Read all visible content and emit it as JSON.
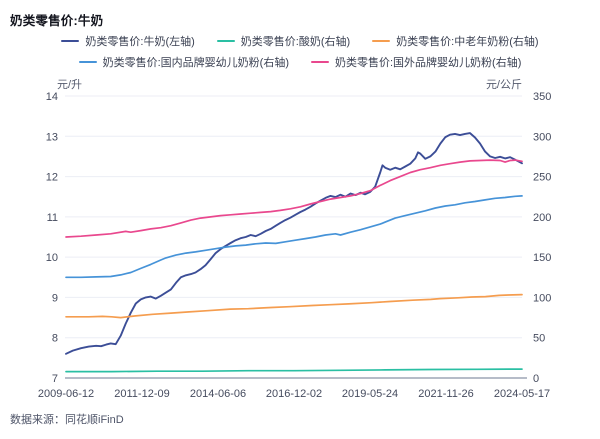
{
  "header": {
    "title": "奶类零售价:牛奶"
  },
  "footer": {
    "source_label": "数据来源：同花顺iFinD"
  },
  "chart_data": {
    "type": "line",
    "title": "奶类零售价:牛奶",
    "grid": true,
    "legend_position": "top-center",
    "left_axis": {
      "unit": "元/升",
      "min": 7,
      "max": 14,
      "ticks": [
        14,
        13,
        12,
        11,
        10,
        9,
        8,
        7
      ]
    },
    "right_axis": {
      "unit": "元/公斤",
      "min": 0,
      "max": 350,
      "ticks": [
        350,
        300,
        250,
        200,
        150,
        100,
        50,
        0
      ]
    },
    "x_tick_labels": [
      "2009-06-12",
      "2011-12-09",
      "2014-06-06",
      "2016-12-02",
      "2019-05-24",
      "2021-11-26",
      "2024-05-17"
    ],
    "legend_rows": [
      [
        0,
        1,
        2
      ],
      [
        3,
        4
      ]
    ],
    "colors": {
      "milk_navy": "#3c4e97",
      "yogurt_teal": "#2abfa3",
      "elder_powder_orange": "#f59d4f",
      "domestic_formula_blue": "#4693d8",
      "foreign_formula_pink": "#e9488e",
      "gridline": "#eceef5",
      "axis_line": "#b6bcc8",
      "tick_text": "#454b5e"
    },
    "series": [
      {
        "name": "奶类零售价:牛奶(左轴)",
        "axis": "left",
        "color": "#3c4e97",
        "width": 1.9,
        "points": [
          [
            0,
            7.6
          ],
          [
            0.015,
            7.68
          ],
          [
            0.033,
            7.74
          ],
          [
            0.05,
            7.78
          ],
          [
            0.066,
            7.8
          ],
          [
            0.077,
            7.79
          ],
          [
            0.088,
            7.83
          ],
          [
            0.098,
            7.86
          ],
          [
            0.109,
            7.84
          ],
          [
            0.12,
            8.05
          ],
          [
            0.131,
            8.35
          ],
          [
            0.142,
            8.62
          ],
          [
            0.153,
            8.85
          ],
          [
            0.164,
            8.95
          ],
          [
            0.175,
            9.0
          ],
          [
            0.186,
            9.02
          ],
          [
            0.197,
            8.97
          ],
          [
            0.208,
            9.04
          ],
          [
            0.219,
            9.12
          ],
          [
            0.23,
            9.2
          ],
          [
            0.241,
            9.36
          ],
          [
            0.252,
            9.5
          ],
          [
            0.263,
            9.55
          ],
          [
            0.274,
            9.58
          ],
          [
            0.284,
            9.62
          ],
          [
            0.295,
            9.7
          ],
          [
            0.306,
            9.8
          ],
          [
            0.317,
            9.95
          ],
          [
            0.328,
            10.1
          ],
          [
            0.339,
            10.2
          ],
          [
            0.35,
            10.28
          ],
          [
            0.361,
            10.35
          ],
          [
            0.372,
            10.42
          ],
          [
            0.383,
            10.47
          ],
          [
            0.394,
            10.5
          ],
          [
            0.405,
            10.55
          ],
          [
            0.416,
            10.52
          ],
          [
            0.427,
            10.58
          ],
          [
            0.438,
            10.65
          ],
          [
            0.449,
            10.7
          ],
          [
            0.46,
            10.78
          ],
          [
            0.47,
            10.85
          ],
          [
            0.481,
            10.92
          ],
          [
            0.492,
            10.98
          ],
          [
            0.503,
            11.05
          ],
          [
            0.514,
            11.12
          ],
          [
            0.525,
            11.18
          ],
          [
            0.536,
            11.25
          ],
          [
            0.547,
            11.33
          ],
          [
            0.558,
            11.4
          ],
          [
            0.569,
            11.47
          ],
          [
            0.58,
            11.52
          ],
          [
            0.591,
            11.49
          ],
          [
            0.602,
            11.55
          ],
          [
            0.613,
            11.5
          ],
          [
            0.624,
            11.58
          ],
          [
            0.635,
            11.54
          ],
          [
            0.646,
            11.6
          ],
          [
            0.656,
            11.56
          ],
          [
            0.667,
            11.62
          ],
          [
            0.678,
            11.75
          ],
          [
            0.689,
            12.1
          ],
          [
            0.694,
            12.28
          ],
          [
            0.7,
            12.22
          ],
          [
            0.711,
            12.17
          ],
          [
            0.722,
            12.22
          ],
          [
            0.733,
            12.18
          ],
          [
            0.744,
            12.25
          ],
          [
            0.755,
            12.32
          ],
          [
            0.766,
            12.45
          ],
          [
            0.772,
            12.6
          ],
          [
            0.777,
            12.57
          ],
          [
            0.788,
            12.44
          ],
          [
            0.799,
            12.5
          ],
          [
            0.81,
            12.62
          ],
          [
            0.821,
            12.82
          ],
          [
            0.832,
            12.98
          ],
          [
            0.842,
            13.04
          ],
          [
            0.853,
            13.06
          ],
          [
            0.864,
            13.03
          ],
          [
            0.875,
            13.06
          ],
          [
            0.886,
            13.08
          ],
          [
            0.897,
            12.97
          ],
          [
            0.908,
            12.82
          ],
          [
            0.919,
            12.62
          ],
          [
            0.93,
            12.5
          ],
          [
            0.941,
            12.46
          ],
          [
            0.952,
            12.49
          ],
          [
            0.963,
            12.45
          ],
          [
            0.974,
            12.48
          ],
          [
            0.985,
            12.42
          ],
          [
            1,
            12.33
          ]
        ]
      },
      {
        "name": "奶类零售价:酸奶(右轴)",
        "axis": "right",
        "color": "#2abfa3",
        "width": 1.7,
        "points": [
          [
            0,
            8
          ],
          [
            0.1,
            8
          ],
          [
            0.2,
            8.5
          ],
          [
            0.3,
            8.5
          ],
          [
            0.4,
            9
          ],
          [
            0.5,
            9
          ],
          [
            0.6,
            9.5
          ],
          [
            0.7,
            10
          ],
          [
            0.8,
            10.5
          ],
          [
            0.9,
            10.8
          ],
          [
            1,
            11
          ]
        ]
      },
      {
        "name": "奶类零售价:中老年奶粉(右轴)",
        "axis": "right",
        "color": "#f59d4f",
        "width": 1.7,
        "points": [
          [
            0,
            76
          ],
          [
            0.05,
            76
          ],
          [
            0.08,
            76.5
          ],
          [
            0.1,
            76
          ],
          [
            0.12,
            75
          ],
          [
            0.15,
            77
          ],
          [
            0.19,
            79
          ],
          [
            0.23,
            80.5
          ],
          [
            0.27,
            82
          ],
          [
            0.31,
            83.5
          ],
          [
            0.36,
            85.5
          ],
          [
            0.4,
            86
          ],
          [
            0.45,
            87.5
          ],
          [
            0.49,
            88.5
          ],
          [
            0.54,
            90
          ],
          [
            0.58,
            91
          ],
          [
            0.62,
            92
          ],
          [
            0.67,
            93.5
          ],
          [
            0.71,
            95
          ],
          [
            0.76,
            96.5
          ],
          [
            0.8,
            97.5
          ],
          [
            0.82,
            98.5
          ],
          [
            0.86,
            99.5
          ],
          [
            0.89,
            100.5
          ],
          [
            0.92,
            101
          ],
          [
            0.95,
            102.5
          ],
          [
            0.97,
            103
          ],
          [
            1,
            103.5
          ]
        ]
      },
      {
        "name": "奶类零售价:国内品牌婴幼儿奶粉(右轴)",
        "axis": "right",
        "color": "#4693d8",
        "width": 1.7,
        "points": [
          [
            0,
            125
          ],
          [
            0.033,
            125
          ],
          [
            0.066,
            125.5
          ],
          [
            0.098,
            126
          ],
          [
            0.12,
            128
          ],
          [
            0.142,
            131
          ],
          [
            0.164,
            136
          ],
          [
            0.186,
            141
          ],
          [
            0.208,
            146.5
          ],
          [
            0.219,
            149
          ],
          [
            0.241,
            152.5
          ],
          [
            0.263,
            155
          ],
          [
            0.284,
            156.5
          ],
          [
            0.306,
            158.5
          ],
          [
            0.328,
            160.5
          ],
          [
            0.35,
            162.5
          ],
          [
            0.372,
            164
          ],
          [
            0.394,
            165
          ],
          [
            0.416,
            166.5
          ],
          [
            0.438,
            167.5
          ],
          [
            0.46,
            167
          ],
          [
            0.481,
            169
          ],
          [
            0.503,
            171
          ],
          [
            0.525,
            173
          ],
          [
            0.547,
            175
          ],
          [
            0.569,
            177.5
          ],
          [
            0.591,
            179
          ],
          [
            0.602,
            177.5
          ],
          [
            0.624,
            181
          ],
          [
            0.646,
            184
          ],
          [
            0.667,
            187.5
          ],
          [
            0.689,
            191
          ],
          [
            0.7,
            193.5
          ],
          [
            0.722,
            198.5
          ],
          [
            0.744,
            201.5
          ],
          [
            0.766,
            204.5
          ],
          [
            0.788,
            207.5
          ],
          [
            0.81,
            211
          ],
          [
            0.832,
            213.5
          ],
          [
            0.853,
            215
          ],
          [
            0.875,
            217.5
          ],
          [
            0.897,
            219
          ],
          [
            0.919,
            221
          ],
          [
            0.941,
            223
          ],
          [
            0.963,
            224
          ],
          [
            0.985,
            225.5
          ],
          [
            1,
            226
          ]
        ]
      },
      {
        "name": "奶类零售价:国外品牌婴幼儿奶粉(右轴)",
        "axis": "right",
        "color": "#e9488e",
        "width": 1.7,
        "points": [
          [
            0,
            175
          ],
          [
            0.033,
            176
          ],
          [
            0.066,
            177.5
          ],
          [
            0.098,
            179
          ],
          [
            0.131,
            182
          ],
          [
            0.142,
            181
          ],
          [
            0.164,
            183
          ],
          [
            0.186,
            185
          ],
          [
            0.208,
            186.5
          ],
          [
            0.23,
            189
          ],
          [
            0.252,
            192.5
          ],
          [
            0.274,
            196
          ],
          [
            0.295,
            198.5
          ],
          [
            0.317,
            200
          ],
          [
            0.339,
            201.5
          ],
          [
            0.361,
            202.5
          ],
          [
            0.383,
            203.5
          ],
          [
            0.405,
            204.5
          ],
          [
            0.427,
            205.5
          ],
          [
            0.449,
            206.5
          ],
          [
            0.47,
            208
          ],
          [
            0.492,
            210
          ],
          [
            0.514,
            212.5
          ],
          [
            0.536,
            216
          ],
          [
            0.558,
            219
          ],
          [
            0.58,
            222
          ],
          [
            0.602,
            224
          ],
          [
            0.624,
            226
          ],
          [
            0.646,
            229
          ],
          [
            0.667,
            232.5
          ],
          [
            0.689,
            239
          ],
          [
            0.711,
            245
          ],
          [
            0.733,
            250
          ],
          [
            0.755,
            255
          ],
          [
            0.777,
            258.5
          ],
          [
            0.799,
            261
          ],
          [
            0.821,
            264
          ],
          [
            0.842,
            266
          ],
          [
            0.864,
            268
          ],
          [
            0.886,
            269.5
          ],
          [
            0.908,
            270
          ],
          [
            0.93,
            270.5
          ],
          [
            0.952,
            270
          ],
          [
            0.963,
            268
          ],
          [
            0.974,
            270
          ],
          [
            0.985,
            270.5
          ],
          [
            1,
            269
          ]
        ]
      }
    ]
  }
}
